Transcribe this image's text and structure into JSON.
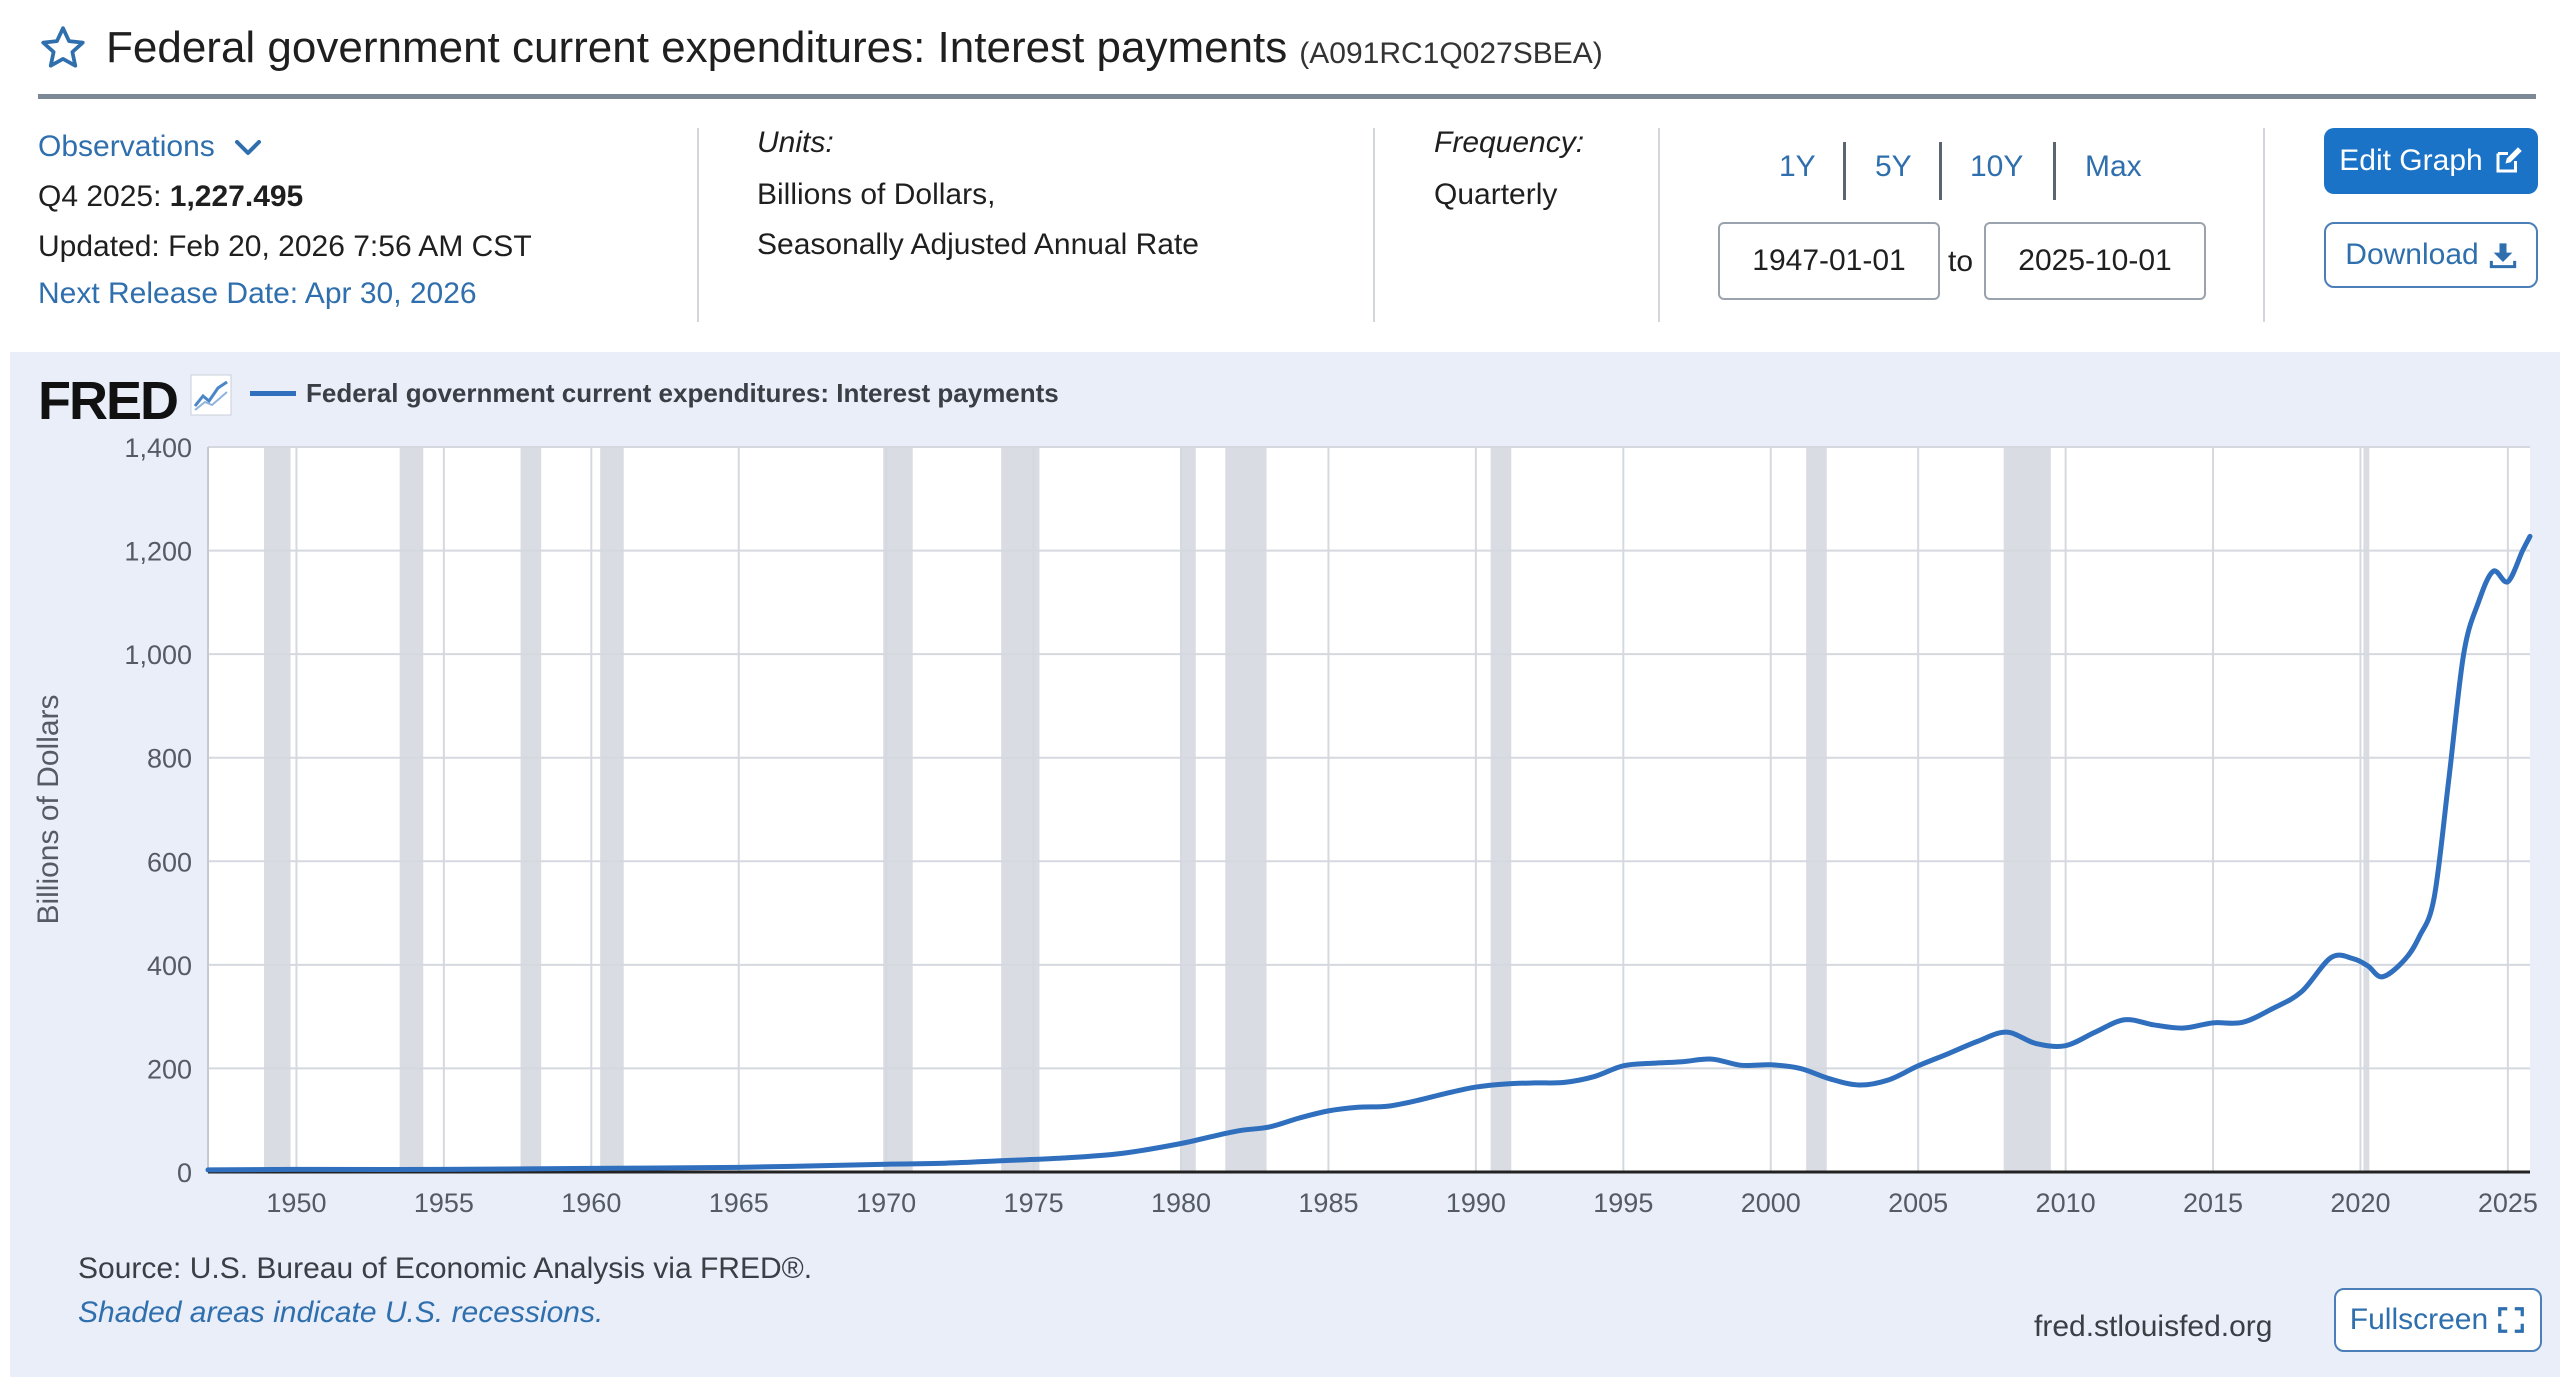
{
  "header": {
    "title": "Federal government current expenditures: Interest payments",
    "series_id": "(A091RC1Q027SBEA)"
  },
  "observations": {
    "label": "Observations",
    "period": "Q4 2025:",
    "value": "1,227.495",
    "updated": "Updated: Feb 20, 2026 7:56 AM CST",
    "next_release": "Next Release Date: Apr 30, 2026"
  },
  "units": {
    "label": "Units:",
    "line1": "Billions of Dollars,",
    "line2": "Seasonally Adjusted Annual Rate"
  },
  "frequency": {
    "label": "Frequency:",
    "value": "Quarterly"
  },
  "range": {
    "buttons": [
      "1Y",
      "5Y",
      "10Y",
      "Max"
    ],
    "start": "1947-01-01",
    "to": "to",
    "end": "2025-10-01"
  },
  "actions": {
    "edit_graph": "Edit Graph",
    "download": "Download",
    "fullscreen": "Fullscreen"
  },
  "graph": {
    "logo": "FRED",
    "legend_label": "Federal government current expenditures: Interest payments",
    "source": "Source: U.S. Bureau of Economic Analysis via FRED®.",
    "recession_note": "Shaded areas indicate U.S. recessions.",
    "site": "fred.stlouisfed.org",
    "series_color": "#2f6fbd",
    "recession_color": "#d9dce3"
  },
  "chart_data": {
    "type": "line",
    "ylabel": "Billions of Dollars",
    "xlim": [
      1947,
      2025.75
    ],
    "ylim": [
      0,
      1400
    ],
    "yticks": [
      0,
      200,
      400,
      600,
      800,
      1000,
      1200,
      1400
    ],
    "ytick_labels": [
      "0",
      "200",
      "400",
      "600",
      "800",
      "1,000",
      "1,200",
      "1,400"
    ],
    "xticks": [
      1950,
      1955,
      1960,
      1965,
      1970,
      1975,
      1980,
      1985,
      1990,
      1995,
      2000,
      2005,
      2010,
      2015,
      2020,
      2025
    ],
    "grid": true,
    "recessions": [
      [
        1948.9,
        1949.8
      ],
      [
        1953.5,
        1954.3
      ],
      [
        1957.6,
        1958.3
      ],
      [
        1960.3,
        1961.1
      ],
      [
        1969.9,
        1970.9
      ],
      [
        1973.9,
        1975.2
      ],
      [
        1980.0,
        1980.5
      ],
      [
        1981.5,
        1982.9
      ],
      [
        1990.5,
        1991.2
      ],
      [
        2001.2,
        2001.9
      ],
      [
        2007.9,
        2009.5
      ],
      [
        2020.1,
        2020.3
      ]
    ],
    "series": [
      {
        "name": "Federal government current expenditures: Interest payments",
        "points": [
          [
            1947,
            4
          ],
          [
            1950,
            5
          ],
          [
            1955,
            5
          ],
          [
            1960,
            7
          ],
          [
            1965,
            9
          ],
          [
            1970,
            15
          ],
          [
            1972,
            17
          ],
          [
            1974,
            22
          ],
          [
            1976,
            27
          ],
          [
            1978,
            36
          ],
          [
            1980,
            55
          ],
          [
            1981,
            68
          ],
          [
            1982,
            80
          ],
          [
            1983,
            87
          ],
          [
            1984,
            104
          ],
          [
            1985,
            118
          ],
          [
            1986,
            125
          ],
          [
            1987,
            127
          ],
          [
            1988,
            138
          ],
          [
            1989,
            152
          ],
          [
            1990,
            164
          ],
          [
            1991,
            170
          ],
          [
            1992,
            172
          ],
          [
            1993,
            173
          ],
          [
            1994,
            184
          ],
          [
            1995,
            205
          ],
          [
            1996,
            210
          ],
          [
            1997,
            213
          ],
          [
            1998,
            218
          ],
          [
            1999,
            206
          ],
          [
            2000,
            207
          ],
          [
            2001,
            200
          ],
          [
            2002,
            180
          ],
          [
            2003,
            168
          ],
          [
            2004,
            178
          ],
          [
            2005,
            205
          ],
          [
            2006,
            228
          ],
          [
            2007,
            252
          ],
          [
            2008,
            270
          ],
          [
            2009,
            248
          ],
          [
            2010,
            244
          ],
          [
            2011,
            270
          ],
          [
            2012,
            294
          ],
          [
            2013,
            284
          ],
          [
            2014,
            278
          ],
          [
            2015,
            288
          ],
          [
            2016,
            289
          ],
          [
            2017,
            315
          ],
          [
            2018,
            348
          ],
          [
            2019,
            414
          ],
          [
            2019.75,
            412
          ],
          [
            2020.25,
            398
          ],
          [
            2020.75,
            377
          ],
          [
            2021.5,
            410
          ],
          [
            2022,
            455
          ],
          [
            2022.5,
            530
          ],
          [
            2023,
            760
          ],
          [
            2023.5,
            1000
          ],
          [
            2024,
            1100
          ],
          [
            2024.5,
            1160
          ],
          [
            2025,
            1140
          ],
          [
            2025.5,
            1200
          ],
          [
            2025.75,
            1227.495
          ]
        ]
      }
    ]
  }
}
